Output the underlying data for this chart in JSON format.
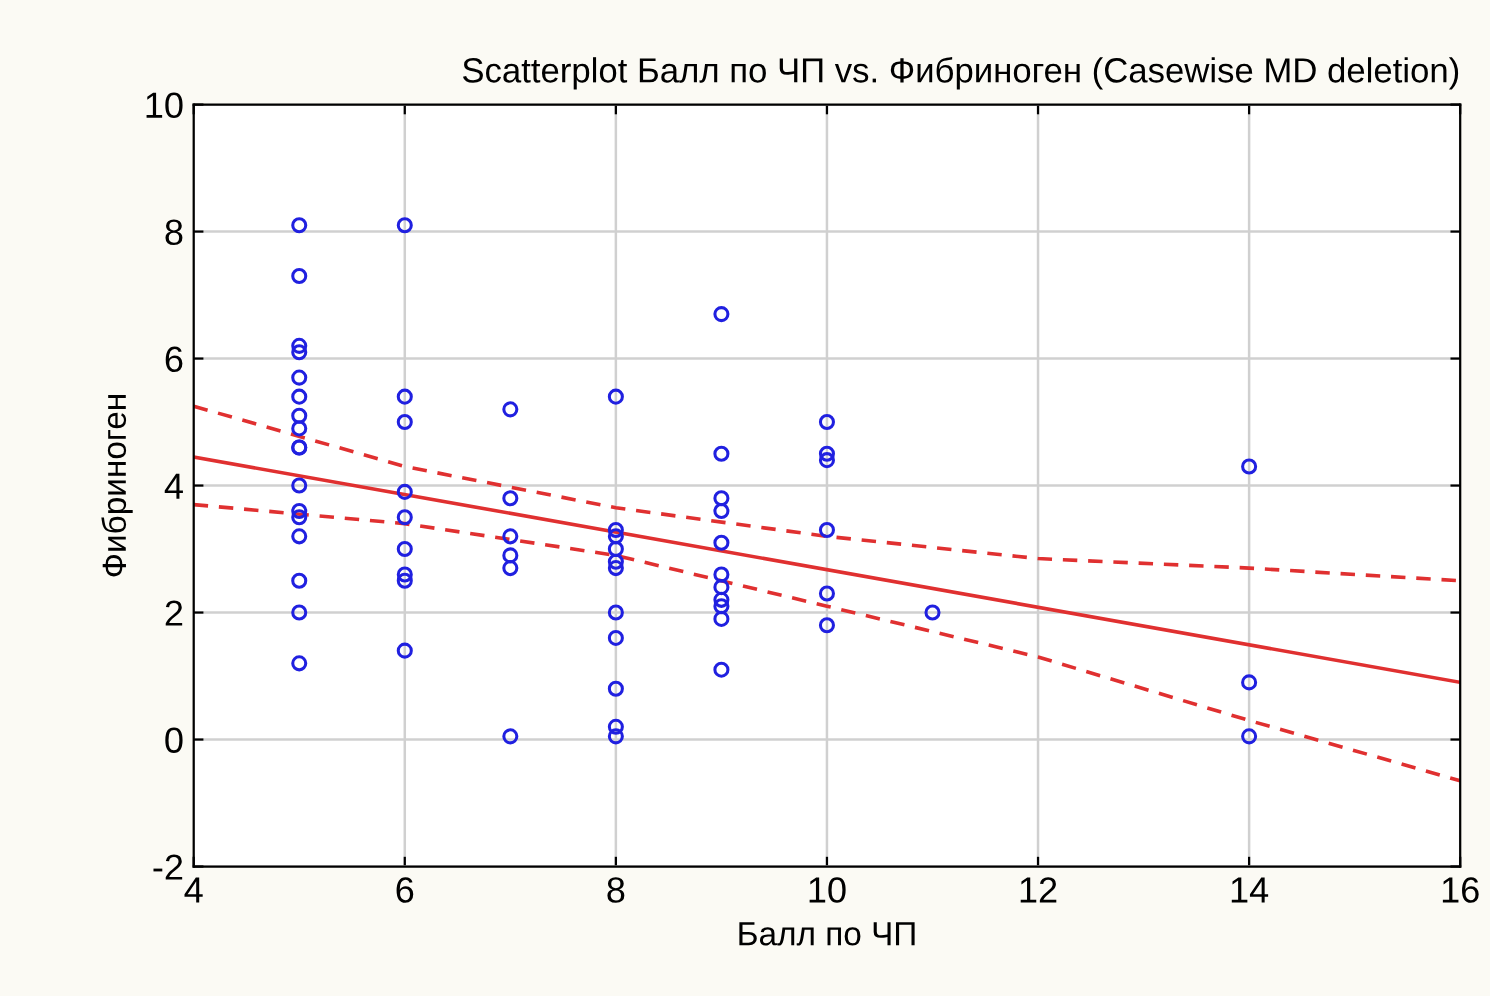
{
  "chart_data": {
    "type": "scatter",
    "title": "Scatterplot Балл по ЧП vs. Фибриноген (Casewise MD deletion)",
    "xlabel": "Балл по ЧП",
    "ylabel": "Фибриноген",
    "xlim": [
      4,
      16
    ],
    "xticks": [
      4,
      6,
      8,
      10,
      12,
      14,
      16
    ],
    "ylim": [
      -2,
      10
    ],
    "yticks": [
      -2,
      0,
      2,
      4,
      6,
      8,
      10
    ],
    "grid": true,
    "legend": false,
    "series": [
      {
        "color": "#2020e0",
        "marker": "circle",
        "x": [
          5,
          5,
          5,
          5,
          5,
          5,
          5,
          5,
          5,
          5,
          5,
          5,
          5,
          5,
          5,
          5,
          5,
          6,
          6,
          6,
          6,
          6,
          6,
          6,
          6,
          6,
          7,
          7,
          7,
          7,
          7,
          7,
          8,
          8,
          8,
          8,
          8,
          8,
          8,
          8,
          8,
          8,
          8,
          9,
          9,
          9,
          9,
          9,
          9,
          9,
          9,
          9,
          9,
          9,
          10,
          10,
          10,
          10,
          10,
          10,
          11,
          14,
          14,
          14
        ],
        "values": [
          8.1,
          7.3,
          6.2,
          6.1,
          5.7,
          5.4,
          5.1,
          4.9,
          4.6,
          4.6,
          4.0,
          3.6,
          3.5,
          3.2,
          2.5,
          2.0,
          1.2,
          8.1,
          5.4,
          5.0,
          3.9,
          3.5,
          3.0,
          2.6,
          2.5,
          1.4,
          5.2,
          3.8,
          3.2,
          2.9,
          2.7,
          0.05,
          5.4,
          3.3,
          3.2,
          3.0,
          2.8,
          2.7,
          2.0,
          1.6,
          0.8,
          0.2,
          0.05,
          6.7,
          4.5,
          3.8,
          3.6,
          3.1,
          2.6,
          2.4,
          2.2,
          2.1,
          1.9,
          1.1,
          5.0,
          4.5,
          4.4,
          3.3,
          2.3,
          1.8,
          2.0,
          4.3,
          0.9,
          0.05
        ]
      },
      {
        "type": "line",
        "color": "#e03030",
        "line_style": "solid",
        "marker": "none",
        "x": [
          4,
          16
        ],
        "values": [
          4.45,
          0.9
        ]
      },
      {
        "type": "line",
        "color": "#e03030",
        "line_style": "dashed",
        "marker": "none",
        "x": [
          4,
          6,
          8,
          10,
          12,
          14,
          16
        ],
        "values": [
          5.25,
          4.3,
          3.65,
          3.2,
          2.85,
          2.7,
          2.5
        ]
      },
      {
        "type": "line",
        "color": "#e03030",
        "line_style": "dashed",
        "marker": "none",
        "x": [
          4,
          6,
          8,
          10,
          12,
          14,
          16
        ],
        "values": [
          3.7,
          3.4,
          2.9,
          2.1,
          1.3,
          0.3,
          -0.65
        ]
      }
    ]
  }
}
